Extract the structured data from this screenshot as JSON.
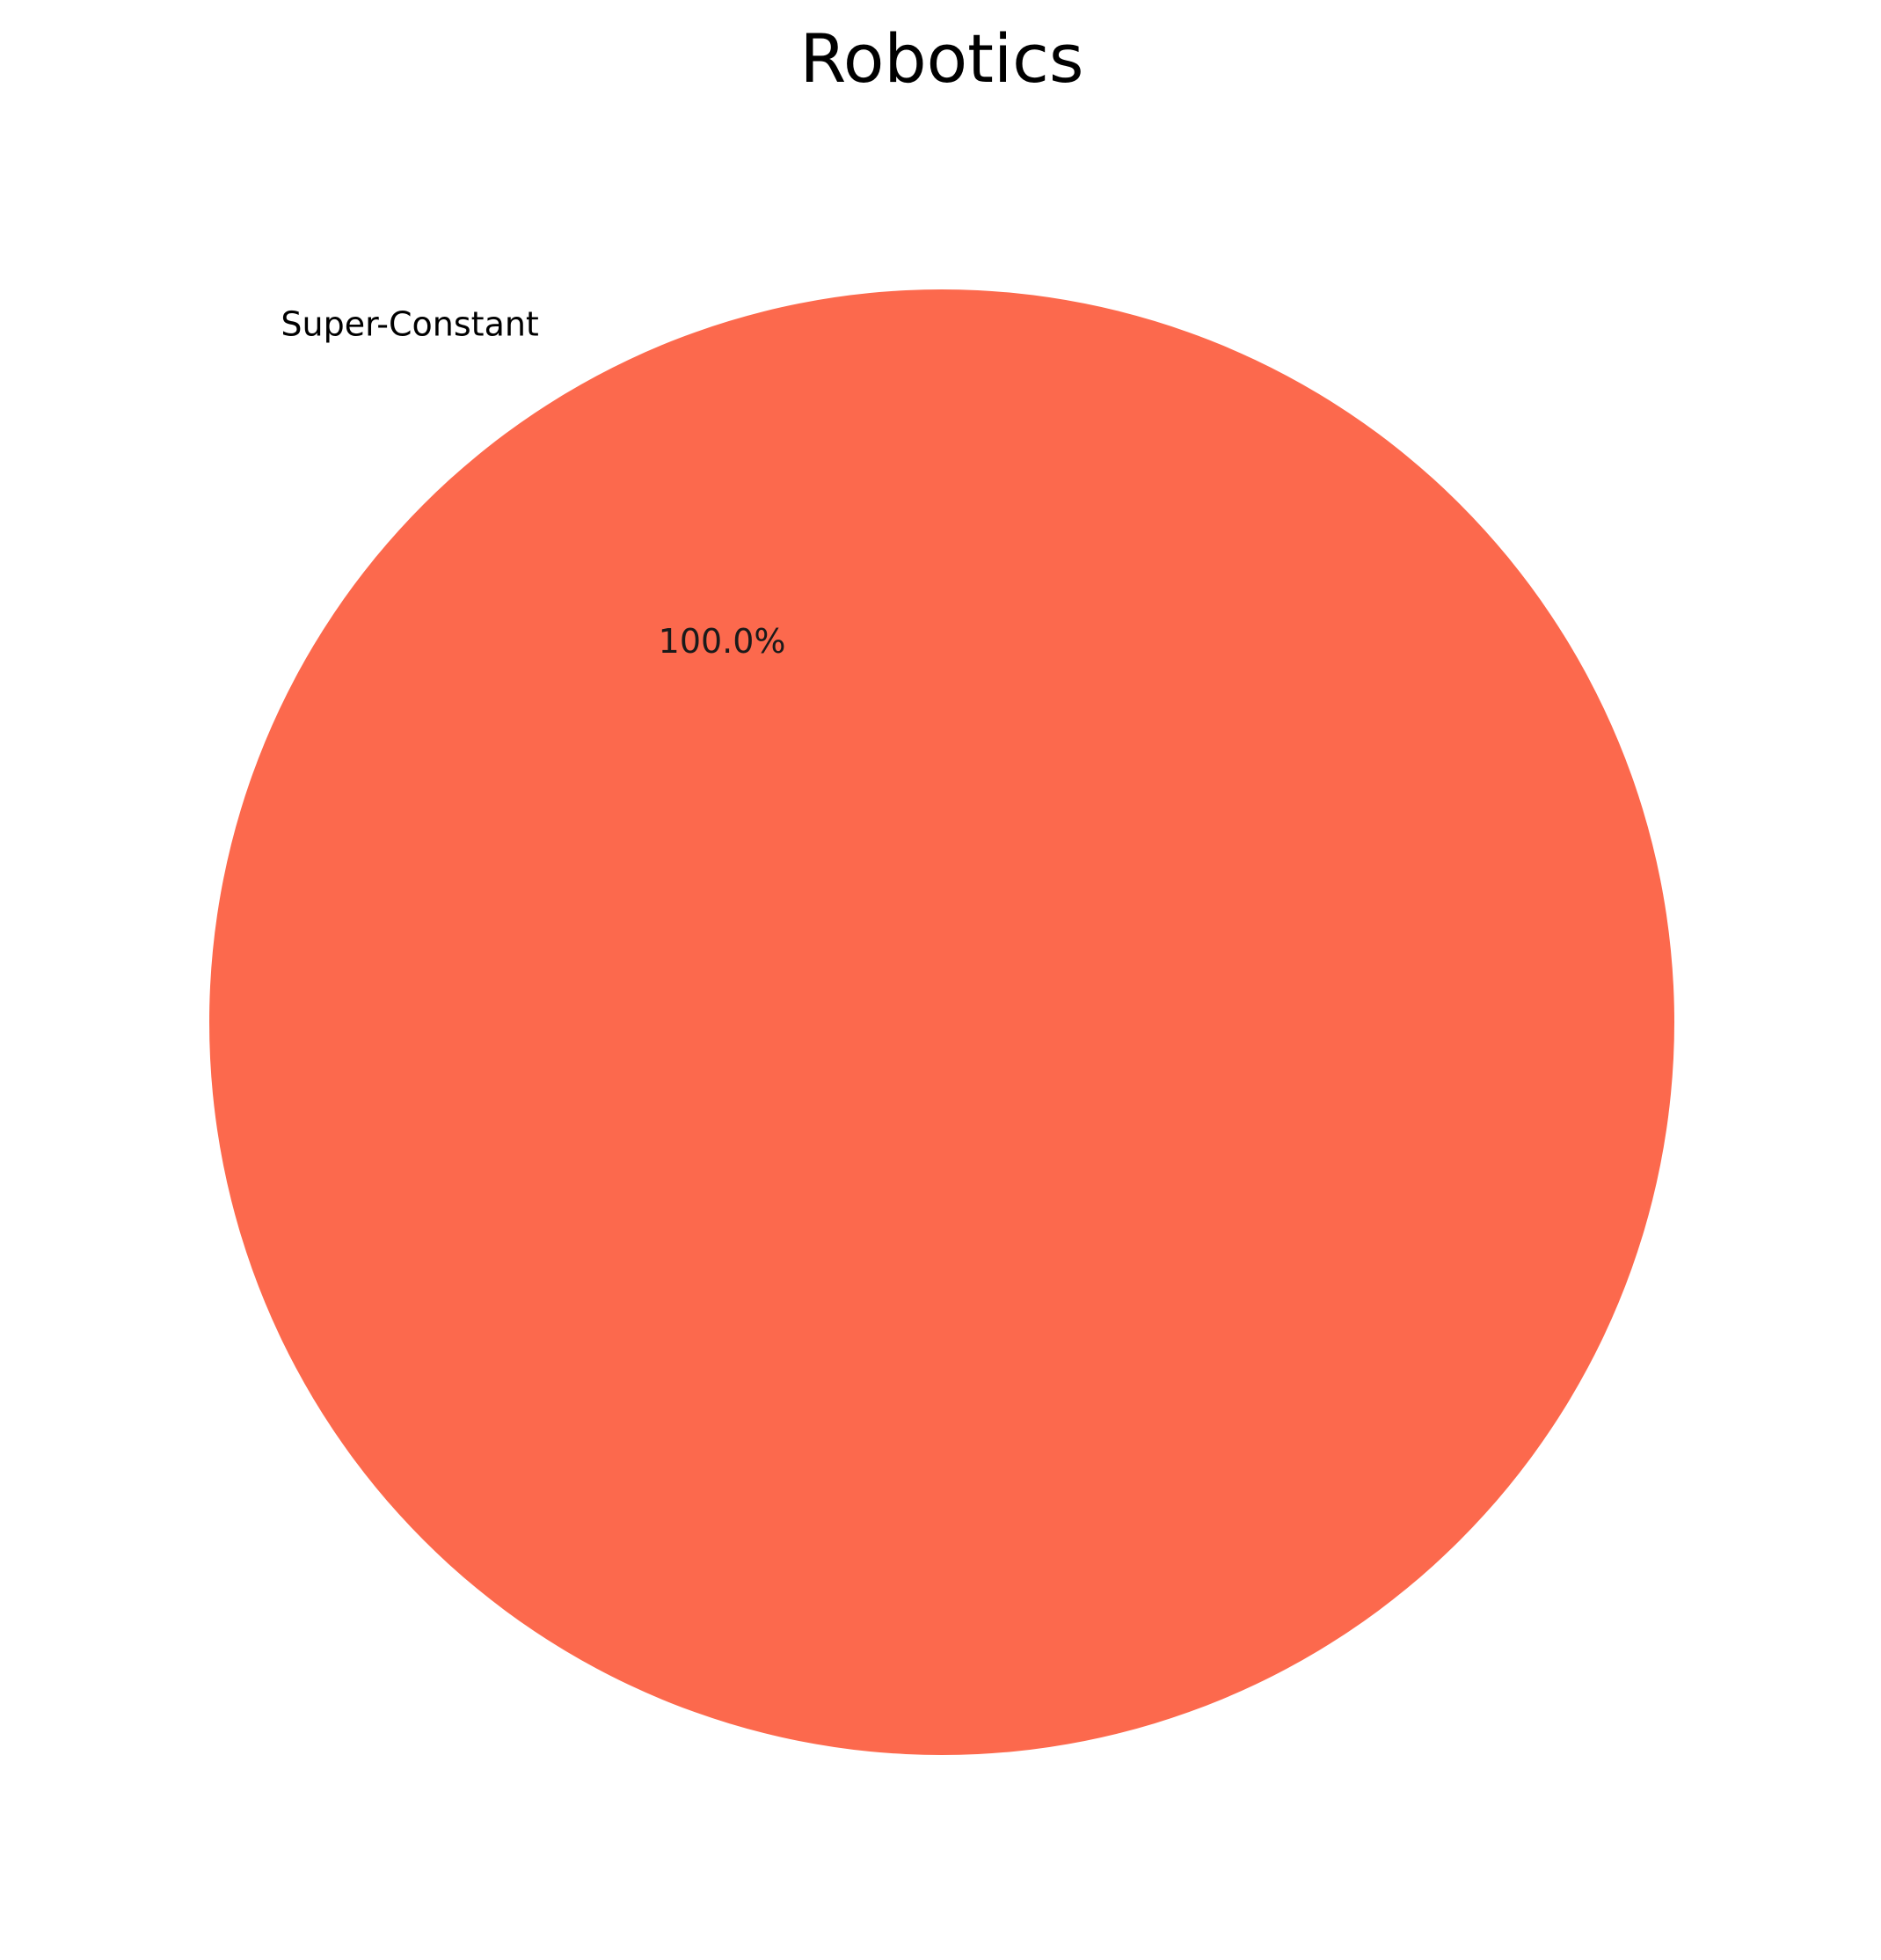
{
  "chart_data": {
    "type": "pie",
    "title": "Robotics",
    "categories": [
      "Super-Constant"
    ],
    "values": [
      100.0
    ],
    "percent_labels": [
      "100.0%"
    ],
    "colors": [
      "#FC694D"
    ],
    "legend": "none"
  }
}
